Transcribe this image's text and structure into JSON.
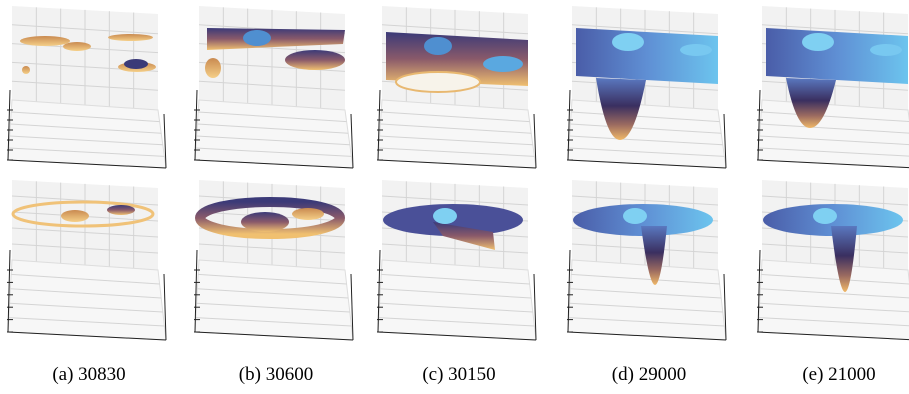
{
  "figure": {
    "captions": [
      "(a) 30830",
      "(b) 30600",
      "(c) 30150",
      "(d) 29000",
      "(e) 21000"
    ]
  }
}
